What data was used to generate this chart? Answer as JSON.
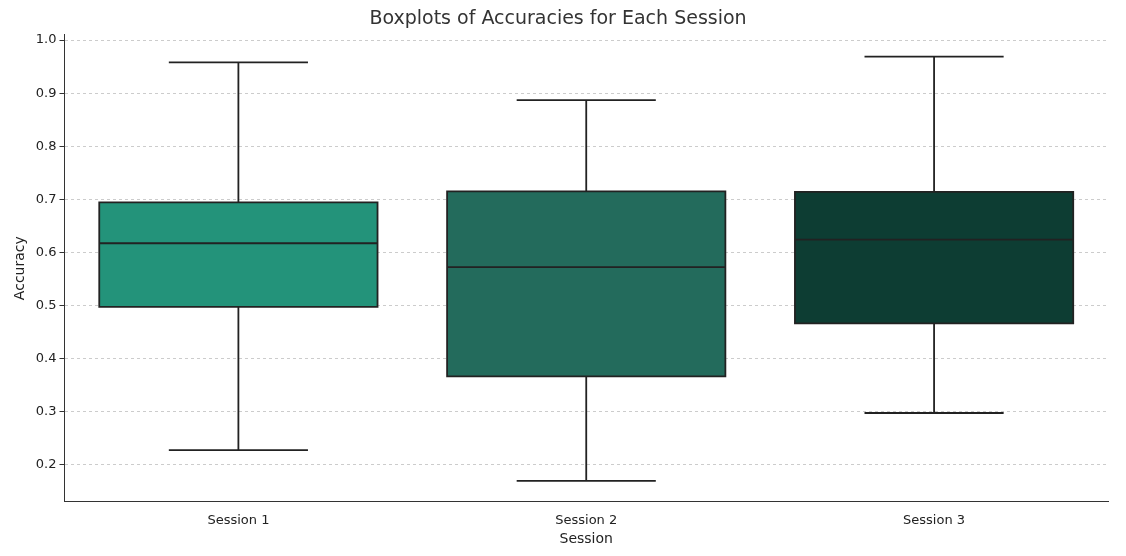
{
  "chart_data": {
    "type": "box",
    "title": "Boxplots of Accuracies for Each Session",
    "xlabel": "Session",
    "ylabel": "Accuracy",
    "categories": [
      "Session 1",
      "Session 2",
      "Session 3"
    ],
    "colors": [
      "#23937a",
      "#236b5c",
      "#0d3d33"
    ],
    "boxes": [
      {
        "low": 0.227,
        "q1": 0.497,
        "median": 0.617,
        "q3": 0.694,
        "high": 0.958
      },
      {
        "low": 0.169,
        "q1": 0.366,
        "median": 0.572,
        "q3": 0.715,
        "high": 0.887
      },
      {
        "low": 0.297,
        "q1": 0.466,
        "median": 0.624,
        "q3": 0.714,
        "high": 0.969
      }
    ],
    "ylim": [
      0.13,
      1.01
    ],
    "yticks": [
      {
        "value": 0.2,
        "label": "0.2"
      },
      {
        "value": 0.3,
        "label": "0.3"
      },
      {
        "value": 0.4,
        "label": "0.4"
      },
      {
        "value": 0.5,
        "label": "0.5"
      },
      {
        "value": 0.6,
        "label": "0.6"
      },
      {
        "value": 0.7,
        "label": "0.7"
      },
      {
        "value": 0.8,
        "label": "0.8"
      },
      {
        "value": 0.9,
        "label": "0.9"
      },
      {
        "value": 1.0,
        "label": "1.0"
      }
    ],
    "grid": "y",
    "legend": false
  }
}
